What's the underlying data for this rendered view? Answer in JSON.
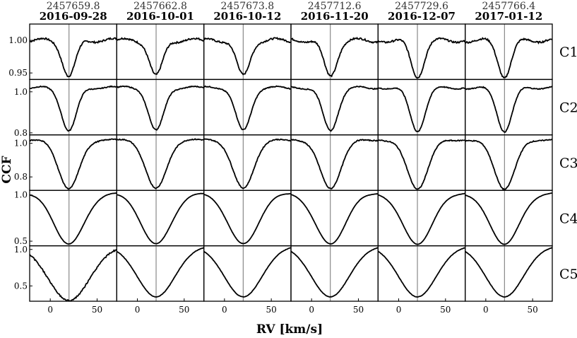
{
  "figure": {
    "xlabel": "RV [km/s]",
    "ylabel": "CCF",
    "columns": [
      {
        "jd": "2457659.8",
        "date": "2016-09-28"
      },
      {
        "jd": "2457662.8",
        "date": "2016-10-01"
      },
      {
        "jd": "2457673.8",
        "date": "2016-10-12"
      },
      {
        "jd": "2457712.6",
        "date": "2016-11-20"
      },
      {
        "jd": "2457729.6",
        "date": "2016-12-07"
      },
      {
        "jd": "2457766.4",
        "date": "2017-01-12"
      }
    ],
    "rows": [
      "C1",
      "C2",
      "C3",
      "C4",
      "C5"
    ],
    "xticks": [
      "0",
      "50"
    ],
    "yticks": [
      [
        "1.00",
        "0.95"
      ],
      [
        "1.0",
        "0.8"
      ],
      [
        "1.0",
        "0.8"
      ],
      [
        "1.0",
        "0.5"
      ],
      [
        "1.0",
        "0.5"
      ]
    ]
  },
  "chart_data": {
    "type": "line",
    "xlabel": "RV [km/s]",
    "ylabel": "CCF",
    "xlim": [
      -22,
      71
    ],
    "x_gridline": 20,
    "line_color": "#000000",
    "gridline_color": "#888888",
    "ylims": [
      [
        0.94,
        1.025
      ],
      [
        0.79,
        1.06
      ],
      [
        0.72,
        1.05
      ],
      [
        0.45,
        1.05
      ],
      [
        0.29,
        1.05
      ]
    ],
    "panels": [
      {
        "row": "C1",
        "depth": 0.055,
        "sigma": 7,
        "wing": 0.003,
        "noise": 0.0025,
        "level": 1.0
      },
      {
        "row": "C2",
        "depth": 0.21,
        "sigma": 8,
        "wing": 0.006,
        "noise": 0.003,
        "level": 1.02
      },
      {
        "row": "C3",
        "depth": 0.29,
        "sigma": 11,
        "wing": 0.004,
        "noise": 0.003,
        "level": 1.02
      },
      {
        "row": "C4",
        "depth": 0.55,
        "sigma": 16,
        "wing": 0.004,
        "noise": 0.002,
        "level": 1.02
      },
      {
        "row": "C5",
        "depth": 0.7,
        "sigma": 20,
        "wing": 0.0,
        "noise": 0.003,
        "level": 1.05
      }
    ],
    "center": 20
  }
}
